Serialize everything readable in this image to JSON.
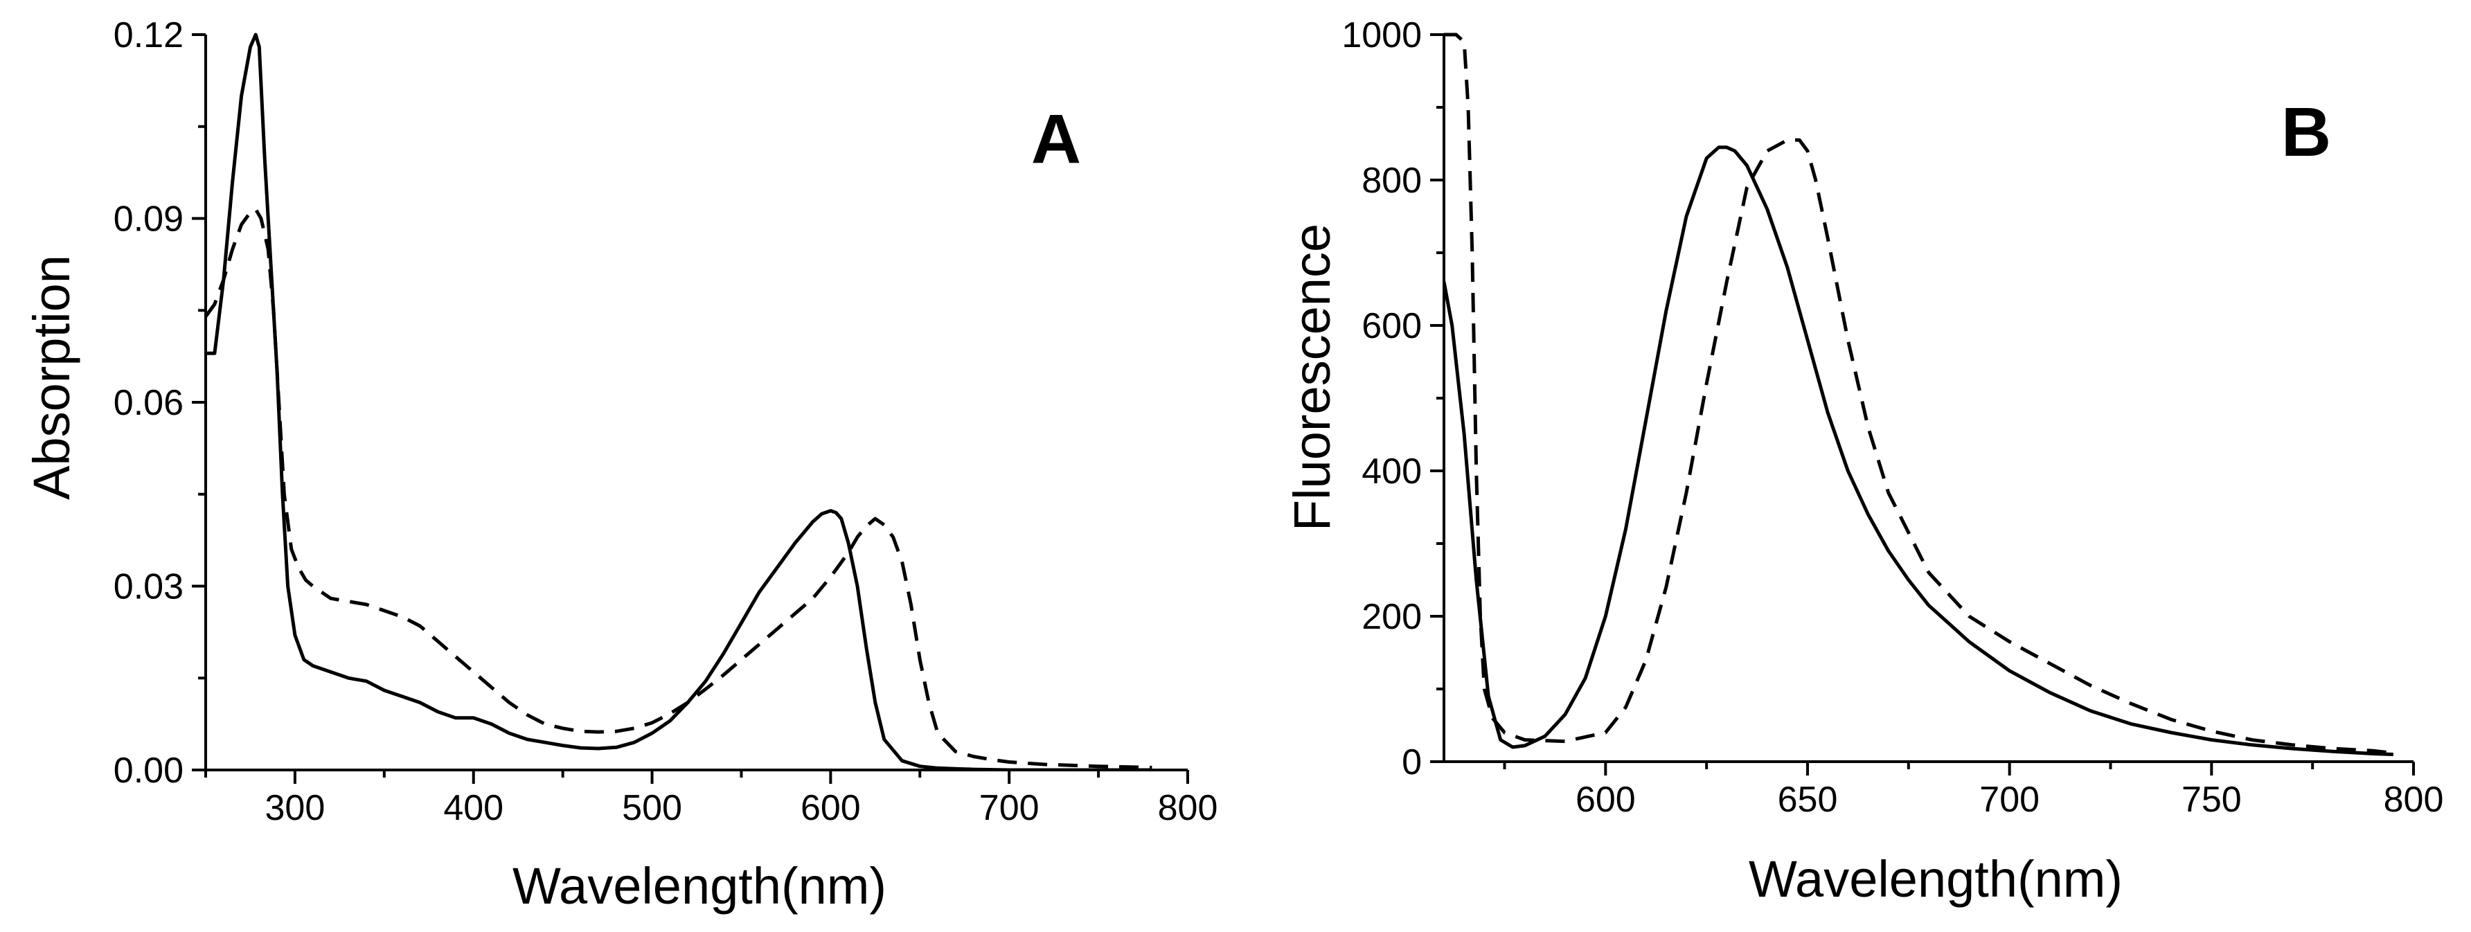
{
  "chart_data": [
    {
      "type": "line",
      "panel_label": "A",
      "xlabel": "Wavelength(nm)",
      "ylabel": "Absorption",
      "xlim": [
        250,
        800
      ],
      "ylim": [
        0,
        0.12
      ],
      "x_ticks": [
        "300",
        "400",
        "500",
        "600",
        "700",
        "800"
      ],
      "x_tick_values": [
        300,
        400,
        500,
        600,
        700,
        800
      ],
      "y_ticks": [
        "0.00",
        "0.03",
        "0.06",
        "0.09",
        "0.12"
      ],
      "y_tick_values": [
        0,
        0.03,
        0.06,
        0.09,
        0.12
      ],
      "series": [
        {
          "name": "solid",
          "style": "solid",
          "x": [
            250,
            255,
            260,
            265,
            270,
            275,
            278,
            280,
            283,
            286,
            290,
            293,
            296,
            300,
            305,
            310,
            320,
            330,
            340,
            350,
            360,
            370,
            380,
            390,
            400,
            410,
            420,
            430,
            440,
            450,
            460,
            470,
            480,
            490,
            500,
            510,
            520,
            530,
            540,
            550,
            560,
            570,
            580,
            590,
            595,
            600,
            603,
            606,
            610,
            615,
            620,
            625,
            630,
            640,
            650,
            660,
            670,
            680,
            700,
            720,
            750,
            780
          ],
          "values": [
            0.068,
            0.068,
            0.08,
            0.096,
            0.11,
            0.118,
            0.12,
            0.118,
            0.1,
            0.085,
            0.065,
            0.045,
            0.03,
            0.022,
            0.018,
            0.017,
            0.016,
            0.015,
            0.0145,
            0.013,
            0.012,
            0.011,
            0.0095,
            0.0085,
            0.0085,
            0.0075,
            0.006,
            0.005,
            0.0045,
            0.004,
            0.0036,
            0.0035,
            0.0037,
            0.0045,
            0.006,
            0.008,
            0.011,
            0.0145,
            0.019,
            0.024,
            0.029,
            0.033,
            0.037,
            0.0405,
            0.0418,
            0.0423,
            0.042,
            0.041,
            0.037,
            0.03,
            0.02,
            0.011,
            0.005,
            0.0015,
            0.0006,
            0.0003,
            0.0002,
            0.0001,
            0.0,
            0.0,
            0.0,
            0.0
          ]
        },
        {
          "name": "dashed",
          "style": "dashed",
          "x": [
            250,
            255,
            260,
            265,
            270,
            275,
            278,
            281,
            285,
            288,
            291,
            294,
            298,
            302,
            306,
            310,
            320,
            330,
            340,
            350,
            360,
            370,
            380,
            390,
            400,
            410,
            420,
            430,
            440,
            450,
            460,
            470,
            480,
            490,
            500,
            510,
            520,
            530,
            540,
            550,
            560,
            570,
            580,
            590,
            600,
            605,
            610,
            615,
            620,
            625,
            630,
            635,
            640,
            645,
            650,
            655,
            660,
            670,
            680,
            690,
            700,
            720,
            750,
            780
          ],
          "values": [
            0.074,
            0.076,
            0.08,
            0.085,
            0.089,
            0.091,
            0.0915,
            0.09,
            0.085,
            0.075,
            0.06,
            0.045,
            0.036,
            0.033,
            0.031,
            0.03,
            0.028,
            0.0275,
            0.027,
            0.026,
            0.025,
            0.0235,
            0.021,
            0.0185,
            0.016,
            0.0135,
            0.011,
            0.009,
            0.0075,
            0.0068,
            0.0063,
            0.0062,
            0.0063,
            0.0068,
            0.0077,
            0.0092,
            0.011,
            0.0132,
            0.0155,
            0.018,
            0.0205,
            0.023,
            0.0255,
            0.028,
            0.0315,
            0.0335,
            0.0355,
            0.038,
            0.0398,
            0.041,
            0.04,
            0.038,
            0.034,
            0.027,
            0.018,
            0.011,
            0.006,
            0.003,
            0.0022,
            0.0017,
            0.0013,
            0.0009,
            0.0006,
            0.0004
          ]
        }
      ]
    },
    {
      "type": "line",
      "panel_label": "B",
      "xlabel": "Wavelength(nm)",
      "ylabel": "Fluorescence",
      "xlim": [
        560,
        800
      ],
      "ylim": [
        0,
        1000
      ],
      "x_ticks": [
        "600",
        "650",
        "700",
        "750",
        "800"
      ],
      "x_tick_values": [
        600,
        650,
        700,
        750,
        800
      ],
      "y_ticks": [
        "0",
        "200",
        "400",
        "600",
        "800",
        "1000"
      ],
      "y_tick_values": [
        0,
        200,
        400,
        600,
        800,
        1000
      ],
      "series": [
        {
          "name": "solid",
          "style": "solid",
          "x": [
            560,
            562,
            565,
            568,
            571,
            574,
            577,
            580,
            585,
            590,
            595,
            600,
            605,
            610,
            615,
            620,
            625,
            628,
            630,
            632,
            635,
            640,
            645,
            650,
            655,
            660,
            665,
            670,
            675,
            680,
            685,
            690,
            700,
            710,
            720,
            730,
            740,
            750,
            760,
            770,
            780,
            790,
            795
          ],
          "values": [
            660,
            600,
            450,
            250,
            90,
            30,
            20,
            22,
            35,
            65,
            115,
            200,
            320,
            470,
            620,
            750,
            830,
            845,
            845,
            840,
            820,
            760,
            680,
            580,
            480,
            400,
            340,
            290,
            250,
            215,
            190,
            165,
            125,
            95,
            70,
            52,
            40,
            30,
            23,
            18,
            14,
            11,
            10
          ]
        },
        {
          "name": "dashed",
          "style": "dashed",
          "x": [
            560,
            563,
            565,
            566,
            567,
            568,
            569,
            570,
            572,
            575,
            580,
            590,
            600,
            605,
            610,
            615,
            620,
            625,
            630,
            635,
            640,
            645,
            648,
            650,
            652,
            655,
            660,
            665,
            670,
            680,
            690,
            700,
            710,
            720,
            730,
            740,
            750,
            760,
            770,
            780,
            790,
            795
          ],
          "values": [
            1000,
            1000,
            990,
            900,
            700,
            400,
            200,
            100,
            60,
            40,
            30,
            28,
            40,
            75,
            140,
            240,
            370,
            520,
            660,
            790,
            840,
            855,
            855,
            840,
            800,
            720,
            580,
            460,
            370,
            260,
            200,
            165,
            135,
            105,
            80,
            58,
            42,
            30,
            23,
            18,
            15,
            12
          ]
        }
      ]
    }
  ]
}
